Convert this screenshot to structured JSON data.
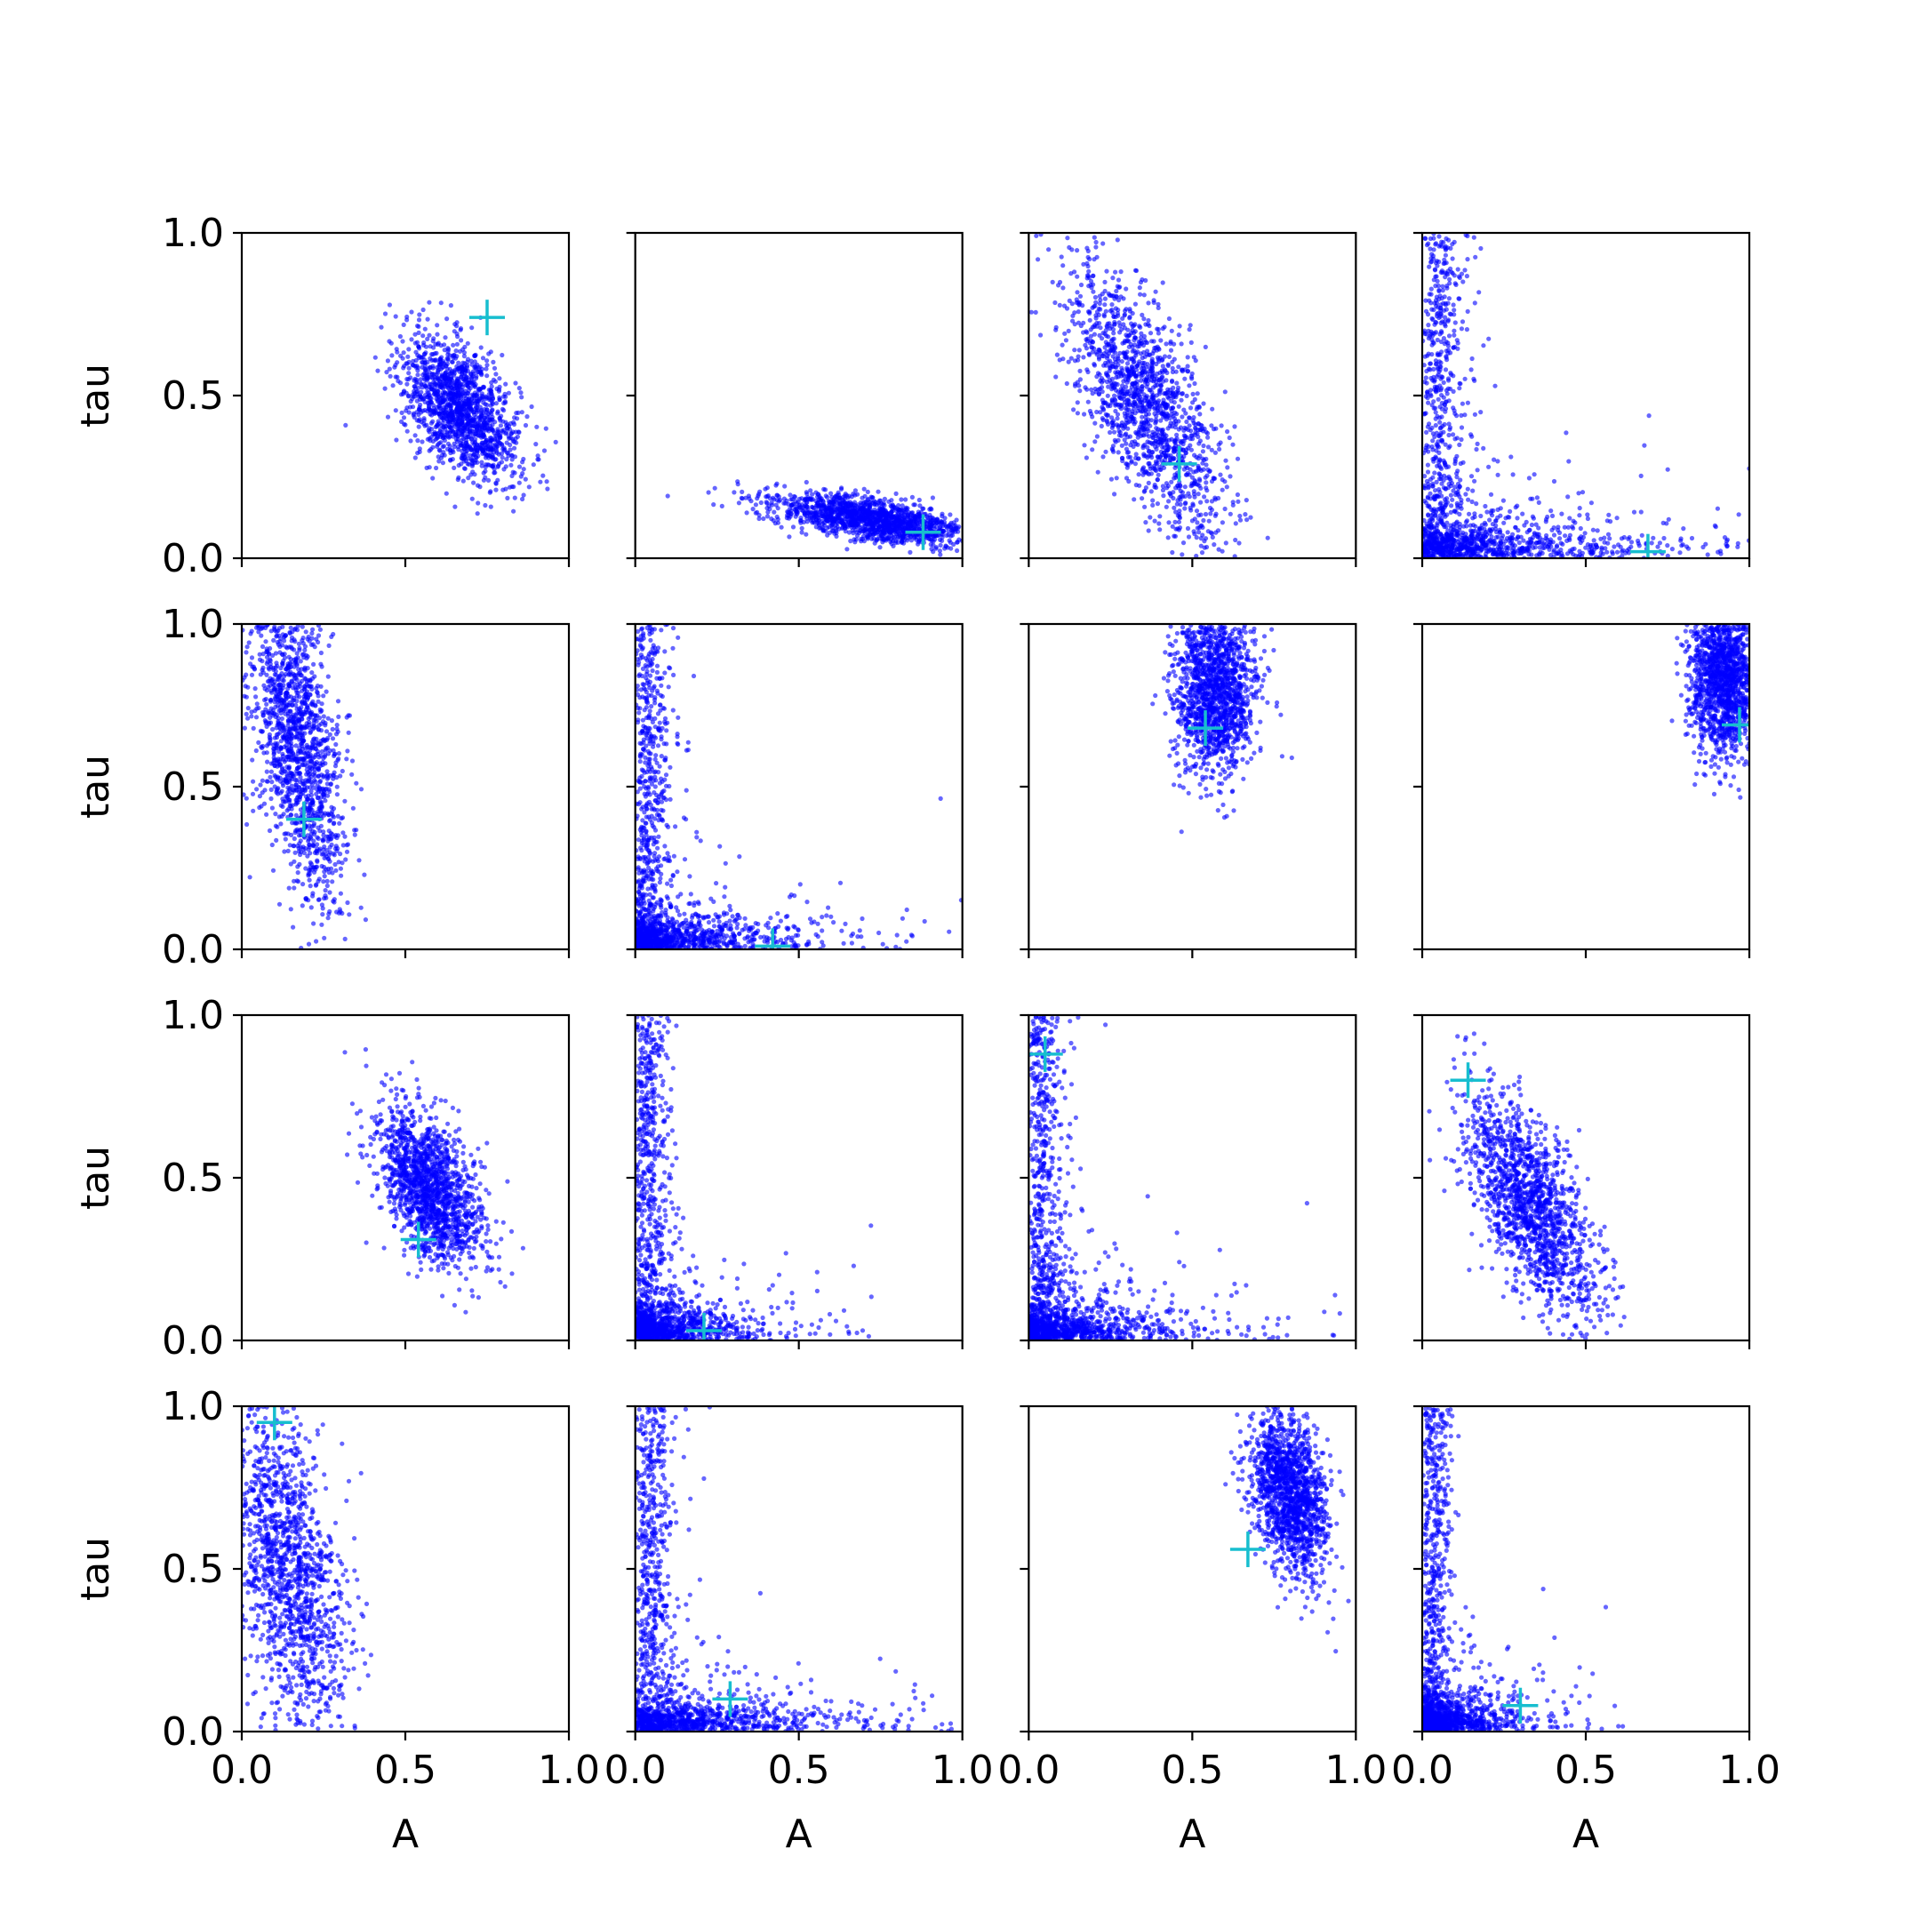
{
  "chart_data": {
    "type": "scatter",
    "layout": {
      "rows": 4,
      "cols": 4,
      "sharex": true,
      "sharey": true
    },
    "xlabel": "A",
    "ylabel": "tau",
    "xlim": [
      0.0,
      1.0
    ],
    "ylim": [
      0.0,
      1.0
    ],
    "xticks": [
      "0.0",
      "0.5",
      "1.0"
    ],
    "yticks": [
      "0.0",
      "0.5",
      "1.0"
    ],
    "grid": false,
    "legend": "none",
    "colors": {
      "samples": "#0000ff",
      "truth": "#17becf",
      "axes": "#000000"
    },
    "samples_per_panel": 1500,
    "panels": [
      {
        "row": 0,
        "col": 0,
        "truth": [
          0.75,
          0.74
        ],
        "samples": {
          "shape": "blob",
          "center": [
            0.67,
            0.46
          ],
          "spread": [
            0.09,
            0.11
          ],
          "corr": -0.5
        }
      },
      {
        "row": 0,
        "col": 1,
        "truth": [
          0.88,
          0.08
        ],
        "samples": {
          "shape": "blob",
          "center": [
            0.72,
            0.12
          ],
          "spread": [
            0.15,
            0.04
          ],
          "corr": -0.6
        }
      },
      {
        "row": 0,
        "col": 2,
        "truth": [
          0.46,
          0.29
        ],
        "samples": {
          "shape": "blob",
          "center": [
            0.36,
            0.48
          ],
          "spread": [
            0.12,
            0.2
          ],
          "corr": -0.7
        }
      },
      {
        "row": 0,
        "col": 3,
        "truth": [
          0.69,
          0.02
        ],
        "samples": {
          "shape": "L",
          "a_scale": 0.25,
          "tau_scale": 0.35
        }
      },
      {
        "row": 1,
        "col": 0,
        "truth": [
          0.19,
          0.4
        ],
        "samples": {
          "shape": "blob",
          "center": [
            0.17,
            0.62
          ],
          "spread": [
            0.07,
            0.25
          ],
          "corr": -0.5
        }
      },
      {
        "row": 1,
        "col": 1,
        "truth": [
          0.42,
          0.01
        ],
        "samples": {
          "shape": "L",
          "a_scale": 0.15,
          "tau_scale": 0.3
        }
      },
      {
        "row": 1,
        "col": 2,
        "truth": [
          0.54,
          0.68
        ],
        "samples": {
          "shape": "blob",
          "center": [
            0.57,
            0.8
          ],
          "spread": [
            0.06,
            0.13
          ],
          "corr": 0.0
        }
      },
      {
        "row": 1,
        "col": 3,
        "truth": [
          0.97,
          0.69
        ],
        "samples": {
          "shape": "blob",
          "center": [
            0.92,
            0.83
          ],
          "spread": [
            0.05,
            0.12
          ],
          "corr": 0.0
        }
      },
      {
        "row": 2,
        "col": 0,
        "truth": [
          0.54,
          0.31
        ],
        "samples": {
          "shape": "blob",
          "center": [
            0.57,
            0.47
          ],
          "spread": [
            0.08,
            0.12
          ],
          "corr": -0.5
        }
      },
      {
        "row": 2,
        "col": 1,
        "truth": [
          0.21,
          0.03
        ],
        "samples": {
          "shape": "L",
          "a_scale": 0.12,
          "tau_scale": 0.3
        }
      },
      {
        "row": 2,
        "col": 2,
        "truth": [
          0.05,
          0.88
        ],
        "samples": {
          "shape": "L",
          "a_scale": 0.15,
          "tau_scale": 0.35
        }
      },
      {
        "row": 2,
        "col": 3,
        "truth": [
          0.14,
          0.8
        ],
        "samples": {
          "shape": "blob",
          "center": [
            0.33,
            0.42
          ],
          "spread": [
            0.1,
            0.17
          ],
          "corr": -0.65
        }
      },
      {
        "row": 3,
        "col": 0,
        "truth": [
          0.1,
          0.95
        ],
        "samples": {
          "shape": "blob",
          "center": [
            0.14,
            0.5
          ],
          "spread": [
            0.09,
            0.28
          ],
          "corr": -0.5
        }
      },
      {
        "row": 3,
        "col": 1,
        "truth": [
          0.29,
          0.1
        ],
        "samples": {
          "shape": "L",
          "a_scale": 0.2,
          "tau_scale": 0.25
        }
      },
      {
        "row": 3,
        "col": 2,
        "truth": [
          0.67,
          0.56
        ],
        "samples": {
          "shape": "blob",
          "center": [
            0.8,
            0.73
          ],
          "spread": [
            0.06,
            0.13
          ],
          "corr": -0.4
        }
      },
      {
        "row": 3,
        "col": 3,
        "truth": [
          0.3,
          0.08
        ],
        "samples": {
          "shape": "L",
          "a_scale": 0.1,
          "tau_scale": 0.3
        }
      }
    ]
  }
}
